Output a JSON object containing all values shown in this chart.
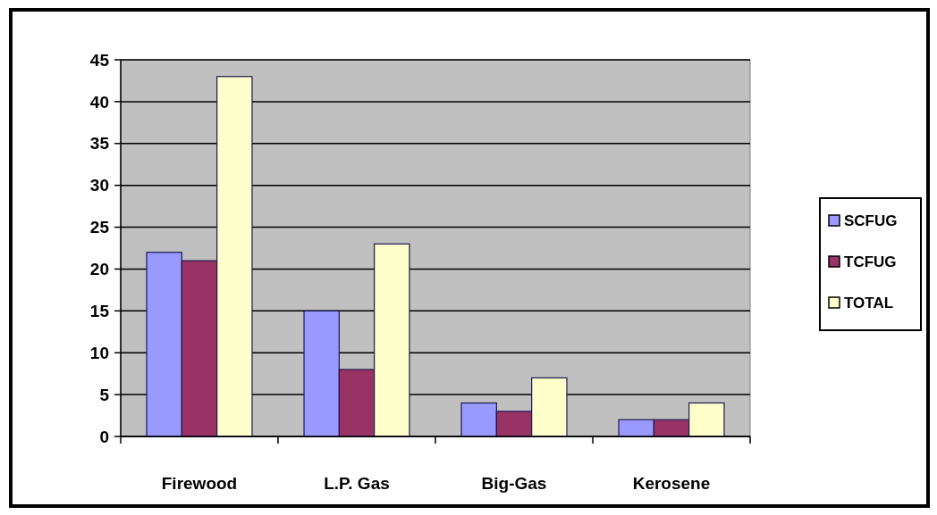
{
  "chart_data": {
    "type": "bar",
    "categories": [
      "Firewood",
      "L.P. Gas",
      "Big-Gas",
      "Kerosene"
    ],
    "series": [
      {
        "name": "SCFUG",
        "color": "#9999ff",
        "values": [
          22,
          15,
          4,
          2
        ]
      },
      {
        "name": "TCFUG",
        "color": "#993366",
        "values": [
          21,
          8,
          3,
          2
        ]
      },
      {
        "name": "TOTAL",
        "color": "#ffffcc",
        "values": [
          43,
          23,
          7,
          4
        ]
      }
    ],
    "ylim": [
      0,
      45
    ],
    "yticks": [
      0,
      5,
      10,
      15,
      20,
      25,
      30,
      35,
      40,
      45
    ],
    "grid": "y",
    "legend": "right"
  }
}
